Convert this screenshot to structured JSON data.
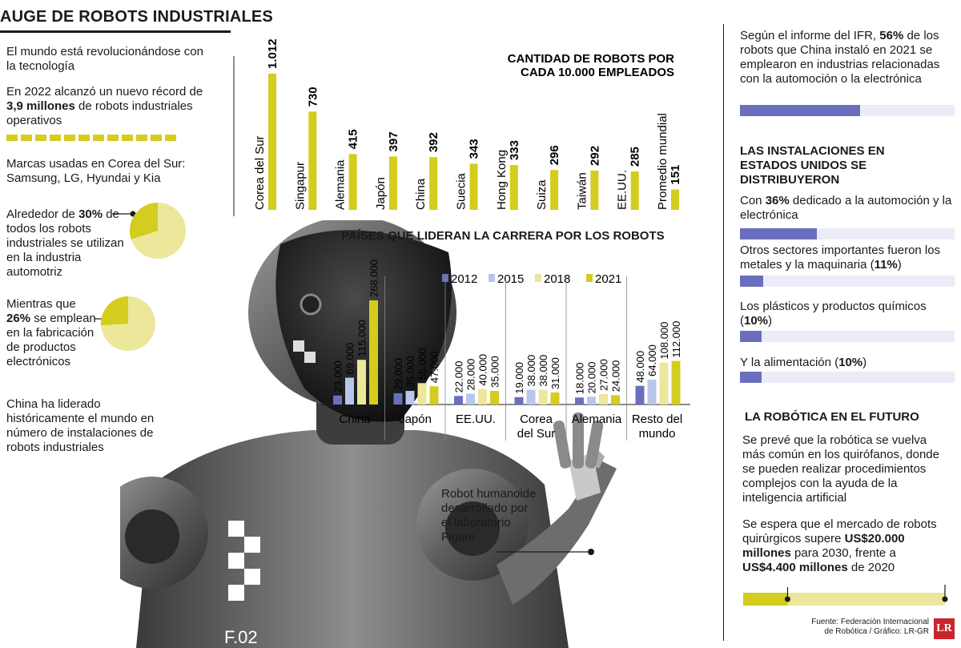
{
  "title": "AUGE DE ROBOTS INDUSTRIALES",
  "left": {
    "p1": "El mundo está revolucionándose con la tecnología",
    "p2_a": "En 2022 alcanzó un nuevo récord de ",
    "p2_b": "3,9 millones",
    "p2_c": " de robots industriales operativos",
    "p3": "Marcas usadas en Corea del Sur: Samsung, LG, Hyundai y Kia",
    "p4_a": "Alrededor de ",
    "p4_b": "30%",
    "p4_c": " de todos los robots industriales se utilizan en la industria automotriz",
    "p5_a": "Mientras que ",
    "p5_b": "26%",
    "p5_c": " se emplean en la fabricación de productos electrónicos",
    "p6": "China ha liderado históricamente el mundo en número de instalaciones de robots industriales",
    "pie1_pct": 30,
    "pie2_pct": 26
  },
  "robot": {
    "caption": "Robot humanoide desarrollado por el laboratorio Figure",
    "badge": "F.02"
  },
  "right": {
    "p1_a": "Según el informe del IFR, ",
    "p1_b": "56%",
    "p1_c": " de los robots que China instaló en 2021 se emplearon en industrias relacionadas con la automoción o la electrónica",
    "bar1": 0.56,
    "hdr1": "LAS INSTALACIONES EN ESTADOS UNIDOS SE DISTRIBUYERON",
    "i1_a": "Con ",
    "i1_b": "36%",
    "i1_c": " dedicado a la automoción y la electrónica",
    "bar2": 0.36,
    "i2_a": "Otros sectores importantes fueron los metales y la maquinaria (",
    "i2_b": "11%",
    "i2_c": ")",
    "bar3": 0.11,
    "i3_a": "Los plásticos y productos químicos (",
    "i3_b": "10%",
    "i3_c": ")",
    "bar4": 0.1,
    "i4_a": "Y la alimentación (",
    "i4_b": "10%",
    "i4_c": ")",
    "bar5": 0.1,
    "hdr2": "LA ROBÓTICA EN EL FUTURO",
    "f1": "Se prevé que la robótica se vuelva más común en los quirófanos, donde se pueden realizar procedimientos complejos con la ayuda de la inteligencia artificial",
    "f2_a": "Se espera que el mercado de robots quirúrgicos supere ",
    "f2_b": "US$20.000 millones",
    "f2_c": " para 2030, frente a ",
    "f2_d": "US$4.400 millones",
    "f2_e": " de 2020",
    "market_2020": 4400,
    "market_2030": 20000,
    "source": "Fuente: Federación Internacional de Robótica / Gráfico: LR-GR",
    "logo": "LR"
  },
  "colors": {
    "yellow": "#d4cc1e",
    "c2012": "#6a6fbd",
    "c2015": "#b9c6ec",
    "c2018": "#ece79a",
    "c2021": "#d4cc1e",
    "barBg": "#ebecf7",
    "barFill": "#6a6fbd"
  },
  "chart_data": [
    {
      "type": "bar",
      "title": "CANTIDAD DE ROBOTS POR CADA 10.000 EMPLEADOS",
      "categories": [
        "Corea del Sur",
        "Singapur",
        "Alemania",
        "Japón",
        "China",
        "Suecia",
        "Hong Kong",
        "Suiza",
        "Taiwán",
        "EE.UU.",
        "Promedio mundial"
      ],
      "values": [
        1012,
        730,
        415,
        397,
        392,
        343,
        333,
        296,
        292,
        285,
        151
      ],
      "value_labels": [
        "1.012",
        "730",
        "415",
        "397",
        "392",
        "343",
        "333",
        "296",
        "292",
        "285",
        "151"
      ],
      "ylim": [
        0,
        1012
      ]
    },
    {
      "type": "bar",
      "title": "PAÍSES QUE LIDERAN LA CARRERA POR LOS ROBOTS",
      "categories": [
        "China",
        "Japón",
        "EE.UU.",
        "Corea del Sur",
        "Alemania",
        "Resto del mundo"
      ],
      "legend": [
        "2012",
        "2015",
        "2018",
        "2021"
      ],
      "series": [
        {
          "name": "2012",
          "values": [
            23000,
            29000,
            22000,
            19000,
            18000,
            48000
          ],
          "labels": [
            "23.000",
            "29.000",
            "22.000",
            "19.000",
            "18.000",
            "48.000"
          ]
        },
        {
          "name": "2015",
          "values": [
            69000,
            35000,
            28000,
            38000,
            20000,
            64000
          ],
          "labels": [
            "69.000",
            "35.000",
            "28.000",
            "38.000",
            "20.000",
            "64.000"
          ]
        },
        {
          "name": "2018",
          "values": [
            115000,
            55000,
            40000,
            38000,
            27000,
            108000
          ],
          "labels": [
            "115.000",
            "55.000",
            "40.000",
            "38.000",
            "27.000",
            "108.000"
          ]
        },
        {
          "name": "2021",
          "values": [
            268000,
            47000,
            35000,
            31000,
            24000,
            112000
          ],
          "labels": [
            "268.000",
            "47.000",
            "35.000",
            "31.000",
            "24.000",
            "112.000"
          ]
        }
      ],
      "ylim": [
        0,
        268000
      ]
    }
  ]
}
